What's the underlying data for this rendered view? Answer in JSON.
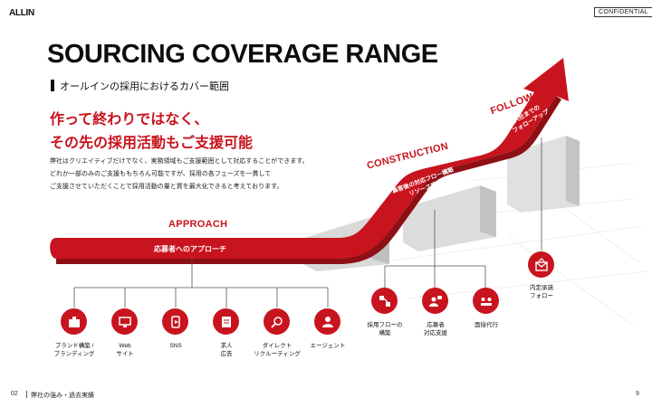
{
  "logo": "ALLIN",
  "confidential": "CONFIDENTIAL",
  "title": "SOURCING COVERAGE RANGE",
  "subtitle": "オールインの採用におけるカバー範囲",
  "headline": [
    "作って終わりではなく、",
    "その先の採用活動もご支援可能"
  ],
  "body": [
    "弊社はクリエイティブだけでなく、実務領域もご支援範囲として対応することができます。",
    "どれか一部のみのご支援ももちろん可能ですが、採用の各フェーズを一貫して",
    "ご支援させていただくことで採用活動の量と質を最大化できると考えております。"
  ],
  "stages": {
    "approach": {
      "label": "APPROACH",
      "band": "応募者へのアプローチ"
    },
    "construction": {
      "label": "CONSTRUCTION",
      "band": [
        "集客後の対応フロー構築",
        "リソース提供"
      ]
    },
    "follow": {
      "label": "FOLLOW",
      "band": [
        "入社までの",
        "フォローアップ"
      ]
    }
  },
  "approach_items": [
    {
      "icon": "brand-building-icon",
      "label": [
        "ブランド構築 /",
        "ブランディング"
      ]
    },
    {
      "icon": "web-site-icon",
      "label": [
        "Web",
        "サイト"
      ]
    },
    {
      "icon": "sns-icon",
      "label": [
        "SNS"
      ]
    },
    {
      "icon": "job-ad-icon",
      "label": [
        "求人",
        "広告"
      ]
    },
    {
      "icon": "direct-recruiting-icon",
      "label": [
        "ダイレクト",
        "リクルーティング"
      ]
    },
    {
      "icon": "agent-icon",
      "label": [
        "エージェント"
      ]
    }
  ],
  "construction_items": [
    {
      "icon": "flow-building-icon",
      "label": [
        "採用フローの",
        "構築"
      ]
    },
    {
      "icon": "applicant-support-icon",
      "label": [
        "応募者",
        "対応支援"
      ]
    },
    {
      "icon": "interview-proxy-icon",
      "label": [
        "面接代行"
      ]
    }
  ],
  "follow_items": [
    {
      "icon": "offer-follow-icon",
      "label": [
        "内定承諾",
        "フォロー"
      ]
    }
  ],
  "footer": {
    "section_num": "02",
    "section_title": "弊社の強み・過去実績",
    "page": "9"
  },
  "colors": {
    "accent": "#c8141e",
    "dark_accent": "#8e0f16"
  }
}
